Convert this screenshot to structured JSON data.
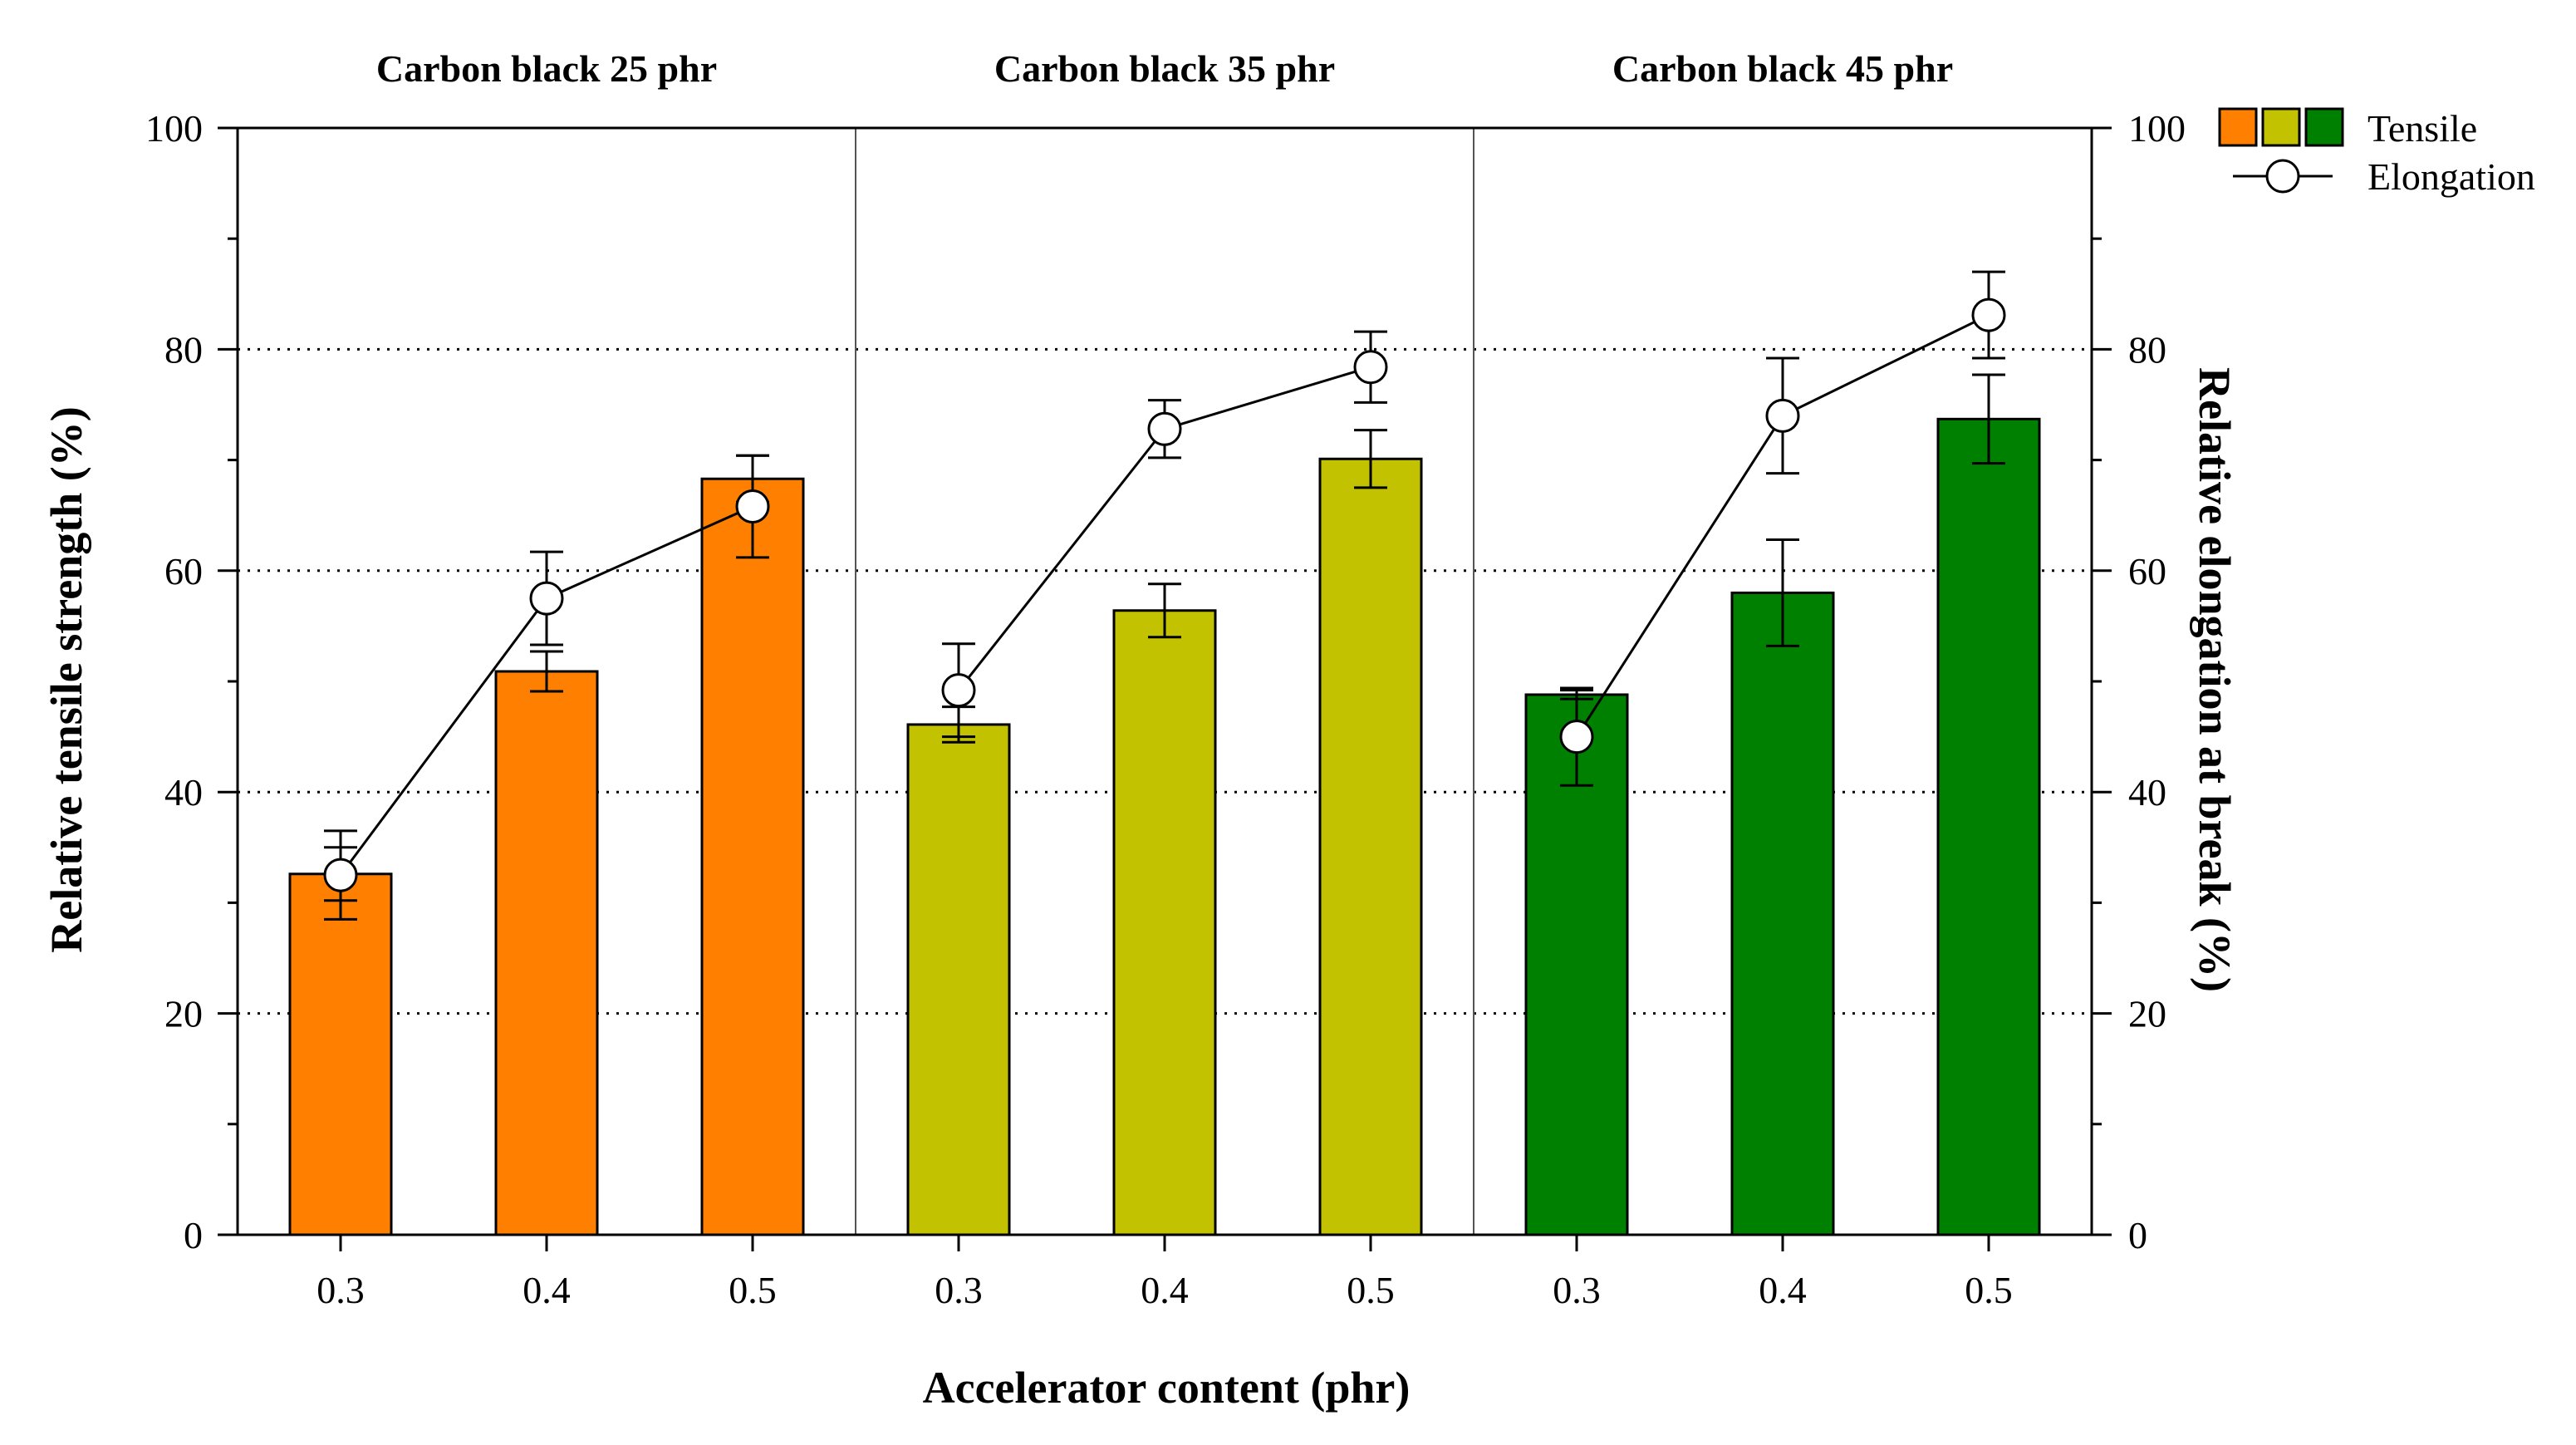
{
  "chart_data": {
    "type": "bar",
    "title": "",
    "xlabel": "Accelerator content (phr)",
    "ylabel": "Relative tensile strength (%)",
    "y2label": "Relative elongation at break (%)",
    "ylim": [
      0,
      100
    ],
    "y2lim": [
      0,
      100
    ],
    "yticks": [
      0,
      20,
      40,
      60,
      80,
      100
    ],
    "y2ticks": [
      0,
      20,
      40,
      60,
      80,
      100
    ],
    "grid": "horizontal dotted at 20, 40, 60, 80",
    "groups": [
      {
        "title": "Carbon black 25 phr",
        "color": "#ff8000",
        "categories": [
          "0.3",
          "0.4",
          "0.5"
        ],
        "tensile": [
          32.6,
          50.9,
          68.3
        ],
        "tensile_err": [
          2.4,
          1.8,
          2.1
        ],
        "elongation": [
          32.5,
          57.5,
          65.8
        ],
        "elongation_err": [
          4.0,
          4.2,
          4.6
        ]
      },
      {
        "title": "Carbon black 35 phr",
        "color": "#c2c200",
        "categories": [
          "0.3",
          "0.4",
          "0.5"
        ],
        "tensile": [
          46.1,
          56.4,
          70.1
        ],
        "tensile_err": [
          1.6,
          2.4,
          2.6
        ],
        "elongation": [
          49.2,
          72.8,
          78.4
        ],
        "elongation_err": [
          4.2,
          2.6,
          3.2
        ]
      },
      {
        "title": "Carbon black 45 phr",
        "color": "#008000",
        "categories": [
          "0.3",
          "0.4",
          "0.5"
        ],
        "tensile": [
          48.8,
          58.0,
          73.7
        ],
        "tensile_err": [
          0.4,
          4.8,
          4.0
        ],
        "elongation": [
          45.0,
          74.0,
          83.1
        ],
        "elongation_err": [
          4.4,
          5.2,
          3.9
        ]
      }
    ],
    "legend": {
      "position": "top-right",
      "tensile_label": "Tensile",
      "elongation_label": "Elongation"
    }
  }
}
